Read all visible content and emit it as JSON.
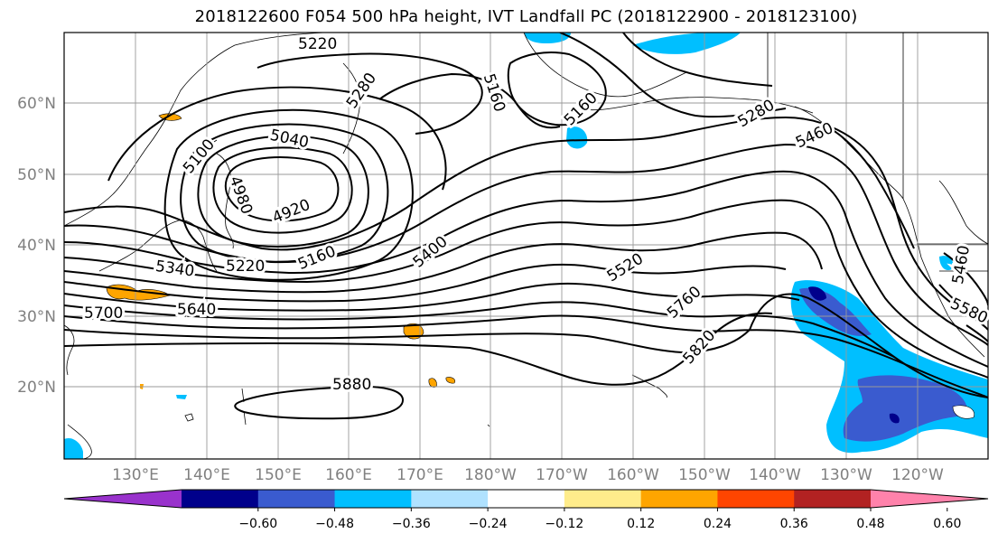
{
  "title": "2018122600 F054 500 hPa height, IVT Landfall PC (2018122900 - 2018123100)",
  "lat_labels": [
    "60°N",
    "50°N",
    "40°N",
    "30°N",
    "20°N"
  ],
  "lon_labels": [
    "130°E",
    "140°E",
    "150°E",
    "160°E",
    "170°E",
    "180°W",
    "170°W",
    "160°W",
    "150°W",
    "140°W",
    "130°W",
    "120°W"
  ],
  "contour_labels": [
    "5220",
    "5280",
    "5160",
    "5160",
    "5280",
    "5460",
    "5100",
    "5040",
    "4980",
    "4920",
    "5160",
    "5220",
    "5340",
    "5400",
    "5520",
    "5760",
    "5700",
    "5640",
    "5820",
    "5880",
    "5460",
    "5580"
  ],
  "colorbar": {
    "colors": [
      "#9932cc",
      "#00008b",
      "#3a5bcf",
      "#00bfff",
      "#b0e2ff",
      "#ffffff",
      "#ffec8b",
      "#ffa500",
      "#ff4500",
      "#b22222",
      "#ff82ab"
    ],
    "ticks": [
      "−0.60",
      "−0.48",
      "−0.36",
      "−0.24",
      "−0.12",
      "0.12",
      "0.24",
      "0.36",
      "0.48",
      "0.60"
    ]
  },
  "shading_colors": {
    "light_blue": "#00bfff",
    "medium_blue": "#3a5bcf",
    "dark_blue": "#00008b",
    "orange": "#ffa500"
  }
}
